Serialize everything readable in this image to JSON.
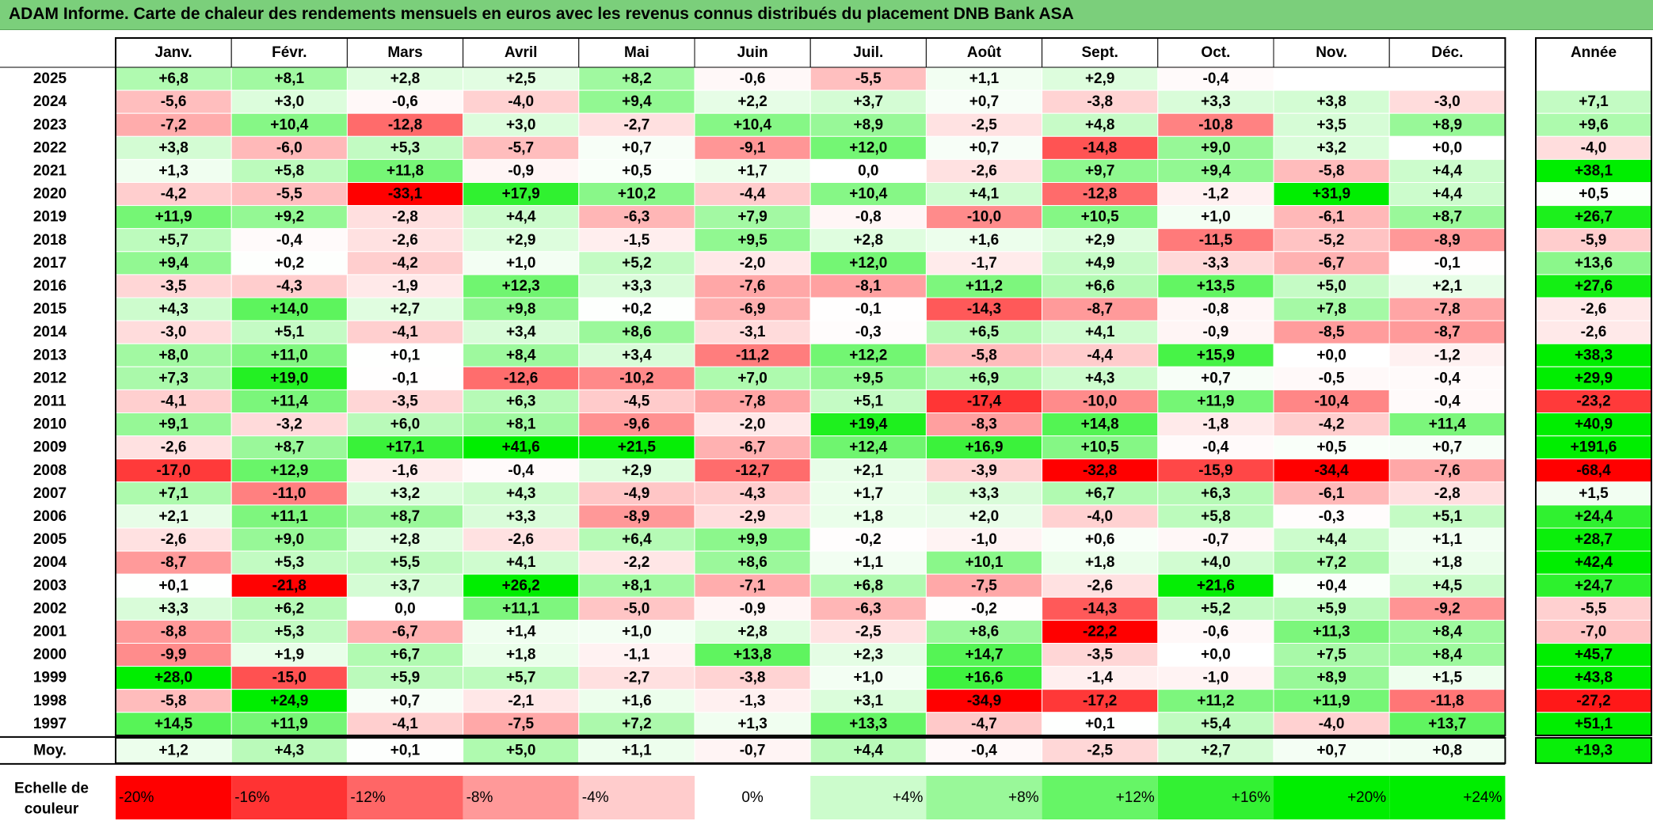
{
  "title": "ADAM Informe. Carte de chaleur des rendements mensuels en euros avec les revenus connus distribués du placement DNB Bank ASA",
  "colors": {
    "title_bg": "#7bcf7b",
    "negative_max": "#ff0000",
    "neutral": "#ffffff",
    "positive_max": "#00ee00"
  },
  "chart_data": {
    "type": "heatmap",
    "title": "ADAM Informe. Carte de chaleur des rendements mensuels en euros avec les revenus connus distribués du placement DNB Bank ASA",
    "months": [
      "Janv.",
      "Févr.",
      "Mars",
      "Avril",
      "Mai",
      "Juin",
      "Juil.",
      "Août",
      "Sept.",
      "Oct.",
      "Nov.",
      "Déc."
    ],
    "year_header": "Année",
    "avg_label": "Moy.",
    "rows": [
      {
        "year": "2025",
        "values": [
          "+6,8",
          "+8,1",
          "+2,8",
          "+2,5",
          "+8,2",
          "-0,6",
          "-5,5",
          "+1,1",
          "+2,9",
          "-0,4",
          "",
          ""
        ],
        "annual": ""
      },
      {
        "year": "2024",
        "values": [
          "-5,6",
          "+3,0",
          "-0,6",
          "-4,0",
          "+9,4",
          "+2,2",
          "+3,7",
          "+0,7",
          "-3,8",
          "+3,3",
          "+3,8",
          "-3,0"
        ],
        "annual": "+7,1"
      },
      {
        "year": "2023",
        "values": [
          "-7,2",
          "+10,4",
          "-12,8",
          "+3,0",
          "-2,7",
          "+10,4",
          "+8,9",
          "-2,5",
          "+4,8",
          "-10,8",
          "+3,5",
          "+8,9"
        ],
        "annual": "+9,6"
      },
      {
        "year": "2022",
        "values": [
          "+3,8",
          "-6,0",
          "+5,3",
          "-5,7",
          "+0,7",
          "-9,1",
          "+12,0",
          "+0,7",
          "-14,8",
          "+9,0",
          "+3,2",
          "+0,0"
        ],
        "annual": "-4,0"
      },
      {
        "year": "2021",
        "values": [
          "+1,3",
          "+5,8",
          "+11,8",
          "-0,9",
          "+0,5",
          "+1,7",
          "0,0",
          "-2,6",
          "+9,7",
          "+9,4",
          "-5,8",
          "+4,4"
        ],
        "annual": "+38,1"
      },
      {
        "year": "2020",
        "values": [
          "-4,2",
          "-5,5",
          "-33,1",
          "+17,9",
          "+10,2",
          "-4,4",
          "+10,4",
          "+4,1",
          "-12,8",
          "-1,2",
          "+31,9",
          "+4,4"
        ],
        "annual": "+0,5"
      },
      {
        "year": "2019",
        "values": [
          "+11,9",
          "+9,2",
          "-2,8",
          "+4,4",
          "-6,3",
          "+7,9",
          "-0,8",
          "-10,0",
          "+10,5",
          "+1,0",
          "-6,1",
          "+8,7"
        ],
        "annual": "+26,7"
      },
      {
        "year": "2018",
        "values": [
          "+5,7",
          "-0,4",
          "-2,6",
          "+2,9",
          "-1,5",
          "+9,5",
          "+2,8",
          "+1,6",
          "+2,9",
          "-11,5",
          "-5,2",
          "-8,9"
        ],
        "annual": "-5,9"
      },
      {
        "year": "2017",
        "values": [
          "+9,4",
          "+0,2",
          "-4,2",
          "+1,0",
          "+5,2",
          "-2,0",
          "+12,0",
          "-1,7",
          "+4,9",
          "-3,3",
          "-6,7",
          "-0,1"
        ],
        "annual": "+13,6"
      },
      {
        "year": "2016",
        "values": [
          "-3,5",
          "-4,3",
          "-1,9",
          "+12,3",
          "+3,3",
          "-7,6",
          "-8,1",
          "+11,2",
          "+6,6",
          "+13,5",
          "+5,0",
          "+2,1"
        ],
        "annual": "+27,6"
      },
      {
        "year": "2015",
        "values": [
          "+4,3",
          "+14,0",
          "+2,7",
          "+9,8",
          "+0,2",
          "-6,9",
          "-0,1",
          "-14,3",
          "-8,7",
          "-0,8",
          "+7,8",
          "-7,8"
        ],
        "annual": "-2,6"
      },
      {
        "year": "2014",
        "values": [
          "-3,0",
          "+5,1",
          "-4,1",
          "+3,4",
          "+8,6",
          "-3,1",
          "-0,3",
          "+6,5",
          "+4,1",
          "-0,9",
          "-8,5",
          "-8,7"
        ],
        "annual": "-2,6"
      },
      {
        "year": "2013",
        "values": [
          "+8,0",
          "+11,0",
          "+0,1",
          "+8,4",
          "+3,4",
          "-11,2",
          "+12,2",
          "-5,8",
          "-4,4",
          "+15,9",
          "+0,0",
          "-1,2"
        ],
        "annual": "+38,3"
      },
      {
        "year": "2012",
        "values": [
          "+7,3",
          "+19,0",
          "-0,1",
          "-12,6",
          "-10,2",
          "+7,0",
          "+9,5",
          "+6,9",
          "+4,3",
          "+0,7",
          "-0,5",
          "-0,4"
        ],
        "annual": "+29,9"
      },
      {
        "year": "2011",
        "values": [
          "-4,1",
          "+11,4",
          "-3,5",
          "+6,3",
          "-4,5",
          "-7,8",
          "+5,1",
          "-17,4",
          "-10,0",
          "+11,9",
          "-10,4",
          "-0,4"
        ],
        "annual": "-23,2"
      },
      {
        "year": "2010",
        "values": [
          "+9,1",
          "-3,2",
          "+6,0",
          "+8,1",
          "-9,6",
          "-2,0",
          "+19,4",
          "-8,3",
          "+14,8",
          "-1,8",
          "-4,2",
          "+11,4"
        ],
        "annual": "+40,9"
      },
      {
        "year": "2009",
        "values": [
          "-2,6",
          "+8,7",
          "+17,1",
          "+41,6",
          "+21,5",
          "-6,7",
          "+12,4",
          "+16,9",
          "+10,5",
          "-0,4",
          "+0,5",
          "+0,7"
        ],
        "annual": "+191,6"
      },
      {
        "year": "2008",
        "values": [
          "-17,0",
          "+12,9",
          "-1,6",
          "-0,4",
          "+2,9",
          "-12,7",
          "+2,1",
          "-3,9",
          "-32,8",
          "-15,9",
          "-34,4",
          "-7,6"
        ],
        "annual": "-68,4"
      },
      {
        "year": "2007",
        "values": [
          "+7,1",
          "-11,0",
          "+3,2",
          "+4,3",
          "-4,9",
          "-4,3",
          "+1,7",
          "+3,3",
          "+6,7",
          "+6,3",
          "-6,1",
          "-2,8"
        ],
        "annual": "+1,5"
      },
      {
        "year": "2006",
        "values": [
          "+2,1",
          "+11,1",
          "+8,7",
          "+3,3",
          "-8,9",
          "-2,9",
          "+1,8",
          "+2,0",
          "-4,0",
          "+5,8",
          "-0,3",
          "+5,1"
        ],
        "annual": "+24,4"
      },
      {
        "year": "2005",
        "values": [
          "-2,6",
          "+9,0",
          "+2,8",
          "-2,6",
          "+6,4",
          "+9,9",
          "-0,2",
          "-1,0",
          "+0,6",
          "-0,7",
          "+4,4",
          "+1,1"
        ],
        "annual": "+28,7"
      },
      {
        "year": "2004",
        "values": [
          "-8,7",
          "+5,3",
          "+5,5",
          "+4,1",
          "-2,2",
          "+8,6",
          "+1,1",
          "+10,1",
          "+1,8",
          "+4,0",
          "+7,2",
          "+1,8"
        ],
        "annual": "+42,4"
      },
      {
        "year": "2003",
        "values": [
          "+0,1",
          "-21,8",
          "+3,7",
          "+26,2",
          "+8,1",
          "-7,1",
          "+6,8",
          "-7,5",
          "-2,6",
          "+21,6",
          "+0,4",
          "+4,5"
        ],
        "annual": "+24,7"
      },
      {
        "year": "2002",
        "values": [
          "+3,3",
          "+6,2",
          "0,0",
          "+11,1",
          "-5,0",
          "-0,9",
          "-6,3",
          "-0,2",
          "-14,3",
          "+5,2",
          "+5,9",
          "-9,2"
        ],
        "annual": "-5,5"
      },
      {
        "year": "2001",
        "values": [
          "-8,8",
          "+5,3",
          "-6,7",
          "+1,4",
          "+1,0",
          "+2,8",
          "-2,5",
          "+8,6",
          "-22,2",
          "-0,6",
          "+11,3",
          "+8,4"
        ],
        "annual": "-7,0"
      },
      {
        "year": "2000",
        "values": [
          "-9,9",
          "+1,9",
          "+6,7",
          "+1,8",
          "-1,1",
          "+13,8",
          "+2,3",
          "+14,7",
          "-3,5",
          "+0,0",
          "+7,5",
          "+8,4"
        ],
        "annual": "+45,7"
      },
      {
        "year": "1999",
        "values": [
          "+28,0",
          "-15,0",
          "+5,9",
          "+5,7",
          "-2,7",
          "-3,8",
          "+1,0",
          "+16,6",
          "-1,4",
          "-1,0",
          "+8,9",
          "+1,5"
        ],
        "annual": "+43,8"
      },
      {
        "year": "1998",
        "values": [
          "-5,8",
          "+24,9",
          "+0,7",
          "-2,1",
          "+1,6",
          "-1,3",
          "+3,1",
          "-34,9",
          "-17,2",
          "+11,2",
          "+11,9",
          "-11,8"
        ],
        "annual": "-27,2"
      },
      {
        "year": "1997",
        "values": [
          "+14,5",
          "+11,9",
          "-4,1",
          "-7,5",
          "+7,2",
          "+1,3",
          "+13,3",
          "-4,7",
          "+0,1",
          "+5,4",
          "-4,0",
          "+13,7"
        ],
        "annual": "+51,1"
      }
    ],
    "averages": {
      "values": [
        "+1,2",
        "+4,3",
        "+0,1",
        "+5,0",
        "+1,1",
        "-0,7",
        "+4,4",
        "-0,4",
        "-2,5",
        "+2,7",
        "+0,7",
        "+0,8"
      ],
      "annual": "+19,3"
    },
    "scale": {
      "label": "Echelle de couleur",
      "items": [
        {
          "label": "-20%",
          "value": -20
        },
        {
          "label": "-16%",
          "value": -16
        },
        {
          "label": "-12%",
          "value": -12
        },
        {
          "label": "-8%",
          "value": -8
        },
        {
          "label": "-4%",
          "value": -4
        },
        {
          "label": "0%",
          "value": 0
        },
        {
          "label": "+4%",
          "value": 4
        },
        {
          "label": "+8%",
          "value": 8
        },
        {
          "label": "+12%",
          "value": 12
        },
        {
          "label": "+16%",
          "value": 16
        },
        {
          "label": "+20%",
          "value": 20
        },
        {
          "label": "+24%",
          "value": 24
        }
      ]
    }
  }
}
